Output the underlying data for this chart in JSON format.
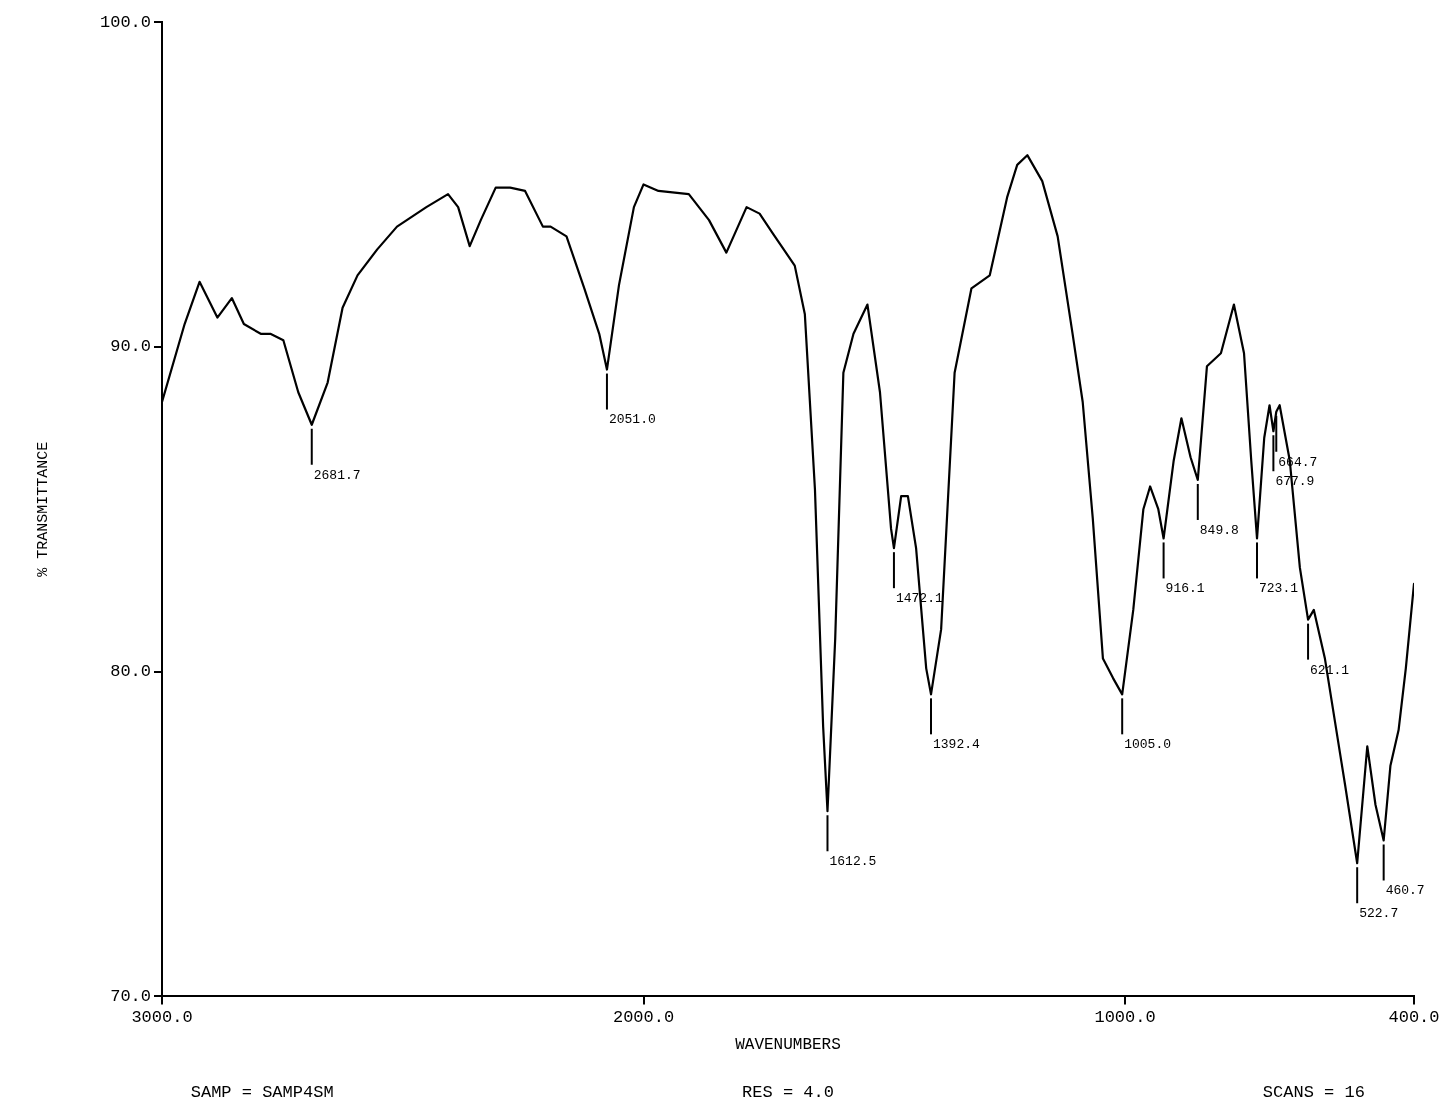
{
  "chart_data": {
    "type": "line",
    "xlabel": "WAVENUMBERS",
    "ylabel": "% TRANSMITTANCE",
    "xlim": [
      3000,
      400
    ],
    "xticks": [
      {
        "value": 3000,
        "label": "3000.0"
      },
      {
        "value": 2000,
        "label": "2000.0"
      },
      {
        "value": 1000,
        "label": "1000.0"
      },
      {
        "value": 400,
        "label": "400.0"
      }
    ],
    "ylim": [
      70,
      100
    ],
    "yticks": [
      {
        "value": 70,
        "label": "70.0"
      },
      {
        "value": 80,
        "label": "80.0"
      },
      {
        "value": 90,
        "label": "90.0"
      },
      {
        "value": 100,
        "label": "100.0"
      }
    ],
    "grid": false,
    "legend": false,
    "marker": "none",
    "line_style": "solid",
    "series": [
      {
        "color": "#000000",
        "x": [
          3000,
          2953,
          2922,
          2885,
          2855,
          2830,
          2795,
          2775,
          2748,
          2717,
          2689,
          2656,
          2625,
          2594,
          2553,
          2512,
          2451,
          2406,
          2385,
          2361,
          2338,
          2307,
          2277,
          2246,
          2209,
          2193,
          2160,
          2123,
          2092,
          2076,
          2051,
          2020,
          2000,
          1969,
          1906,
          1864,
          1828,
          1786,
          1759,
          1732,
          1686,
          1665,
          1644,
          1627,
          1618,
          1602,
          1585,
          1564,
          1535,
          1509,
          1486,
          1480,
          1465,
          1451,
          1434,
          1413,
          1403,
          1382,
          1354,
          1319,
          1281,
          1245,
          1224,
          1203,
          1172,
          1140,
          1109,
          1088,
          1067,
          1046,
          1025,
          1006,
          983,
          962,
          948,
          931,
          920,
          899,
          883,
          864,
          849,
          830,
          801,
          774,
          753,
          738,
          726,
          711,
          700,
          692,
          686,
          679,
          658,
          637,
          620,
          608,
          585,
          543,
          518,
          497,
          480,
          463,
          449,
          432,
          417,
          400
        ],
        "values": [
          88.3,
          90.7,
          92.0,
          90.9,
          91.5,
          90.7,
          90.4,
          90.4,
          90.2,
          88.6,
          87.6,
          88.9,
          91.2,
          92.2,
          93.0,
          93.7,
          94.3,
          94.7,
          94.3,
          93.1,
          93.9,
          94.9,
          94.9,
          94.8,
          93.7,
          93.7,
          93.4,
          91.8,
          90.4,
          89.3,
          91.9,
          94.3,
          95.0,
          94.8,
          94.7,
          93.9,
          92.9,
          94.3,
          94.1,
          93.5,
          92.5,
          91.0,
          85.6,
          78.3,
          75.7,
          81.0,
          89.2,
          90.4,
          91.3,
          88.6,
          84.4,
          83.8,
          85.4,
          85.4,
          83.8,
          80.1,
          79.3,
          81.3,
          89.2,
          91.8,
          92.2,
          94.6,
          95.6,
          95.9,
          95.1,
          93.4,
          90.4,
          88.3,
          84.7,
          80.4,
          79.8,
          79.3,
          81.9,
          85.0,
          85.7,
          85.0,
          84.1,
          86.5,
          87.8,
          86.6,
          85.9,
          89.4,
          89.8,
          91.3,
          89.8,
          86.5,
          84.1,
          87.2,
          88.2,
          87.4,
          88.0,
          88.2,
          86.5,
          83.2,
          81.6,
          81.9,
          80.4,
          76.5,
          74.1,
          77.7,
          75.9,
          74.8,
          77.1,
          78.2,
          80.1,
          82.7
        ]
      }
    ],
    "annotations": [
      {
        "text": "2681.7",
        "x": 2689,
        "y": 87.6
      },
      {
        "text": "2051.0",
        "x": 2076,
        "y": 89.3
      },
      {
        "text": "1612.5",
        "x": 1618,
        "y": 75.7
      },
      {
        "text": "1472.1",
        "x": 1480,
        "y": 83.8
      },
      {
        "text": "1392.4",
        "x": 1403,
        "y": 79.3
      },
      {
        "text": "1005.0",
        "x": 1006,
        "y": 79.3
      },
      {
        "text": "916.1",
        "x": 920,
        "y": 84.1
      },
      {
        "text": "849.8",
        "x": 849,
        "y": 85.9
      },
      {
        "text": "723.1",
        "x": 726,
        "y": 84.1
      },
      {
        "text": "677.9",
        "x": 692,
        "y": 87.4
      },
      {
        "text": "664.7",
        "x": 686,
        "y": 88.0
      },
      {
        "text": "621.1",
        "x": 620,
        "y": 81.6
      },
      {
        "text": "522.7",
        "x": 518,
        "y": 74.1
      },
      {
        "text": "460.7",
        "x": 463,
        "y": 74.8
      },
      "SAMP = SAMP4SM",
      "RES = 4.0",
      "SCANS = 16"
    ]
  }
}
